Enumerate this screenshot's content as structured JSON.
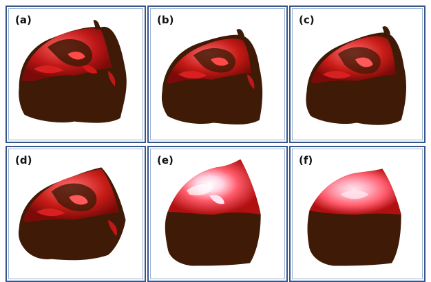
{
  "panels": [
    {
      "label": "(a)"
    },
    {
      "label": "(b)"
    },
    {
      "label": "(c)"
    },
    {
      "label": "(d)"
    },
    {
      "label": "(e)"
    },
    {
      "label": "(f)"
    }
  ],
  "colors": {
    "panel_border": "#34568b",
    "object_dark": "#3f1a06",
    "surface_red": "#b01010",
    "surface_bright": "#ff5050",
    "highlight": "#ffe6f0"
  }
}
